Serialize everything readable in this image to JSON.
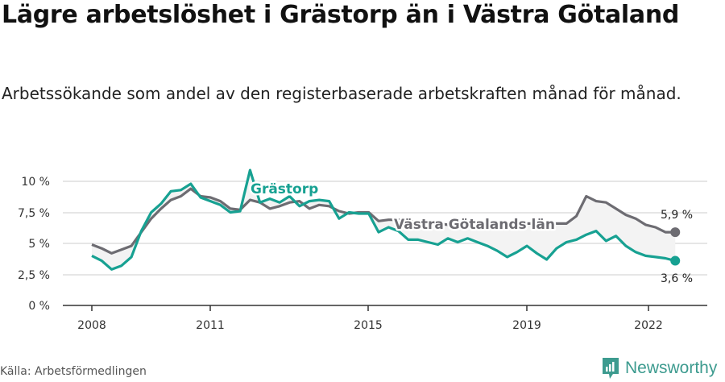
{
  "header": {
    "title": "Lägre arbetslöshet i Grästorp än i Västra Götaland",
    "subtitle": "Arbetssökande som andel av den registerbaserade arbetskraften månad för månad."
  },
  "footer": {
    "source": "Källa: Arbetsförmedlingen",
    "brand": "Newsworthy"
  },
  "colors": {
    "grastorp": "#17a192",
    "vastra_gotaland": "#6d6c72",
    "gap_fill": "#f2f2f2",
    "grid": "#dddddd",
    "axis": "#333333",
    "brand": "#3d9b8f"
  },
  "labels": {
    "grastorp": "Grästorp",
    "vastra_gotaland": "Västra Götalands län",
    "end_vastra": "5,9 %",
    "end_grastorp": "3,6 %"
  },
  "y_ticks": [
    "0 %",
    "2,5 %",
    "5 %",
    "7,5 %",
    "10 %"
  ],
  "x_ticks": [
    "2008",
    "2011",
    "2015",
    "2019",
    "2022"
  ],
  "chart_data": {
    "type": "line",
    "title": "Lägre arbetslöshet i Grästorp än i Västra Götaland",
    "subtitle": "Arbetssökande som andel av den registerbaserade arbetskraften månad för månad.",
    "xlabel": "",
    "ylabel": "",
    "ylim": [
      0,
      10
    ],
    "y_tick_values": [
      0,
      2.5,
      5,
      7.5,
      10
    ],
    "x_tick_values": [
      2008,
      2011,
      2015,
      2019,
      2022
    ],
    "grid": true,
    "legend_position": "inline labels",
    "source": "Källa: Arbetsförmedlingen",
    "x": [
      2008.0,
      2008.25,
      2008.5,
      2008.75,
      2009.0,
      2009.25,
      2009.5,
      2009.75,
      2010.0,
      2010.25,
      2010.5,
      2010.75,
      2011.0,
      2011.25,
      2011.5,
      2011.75,
      2012.0,
      2012.25,
      2012.5,
      2012.75,
      2013.0,
      2013.25,
      2013.5,
      2013.75,
      2014.0,
      2014.25,
      2014.5,
      2014.75,
      2015.0,
      2015.25,
      2015.5,
      2015.75,
      2016.0,
      2016.25,
      2016.5,
      2016.75,
      2017.0,
      2017.25,
      2017.5,
      2017.75,
      2018.0,
      2018.25,
      2018.5,
      2018.75,
      2019.0,
      2019.25,
      2019.5,
      2019.75,
      2020.0,
      2020.25,
      2020.5,
      2020.75,
      2021.0,
      2021.25,
      2021.5,
      2021.75,
      2022.0,
      2022.25,
      2022.5,
      2022.75
    ],
    "series": [
      {
        "name": "Västra Götalands län",
        "color": "#6d6c72",
        "values": [
          4.9,
          4.6,
          4.2,
          4.5,
          4.8,
          5.9,
          7.0,
          7.8,
          8.5,
          8.8,
          9.4,
          8.8,
          8.7,
          8.4,
          7.8,
          7.7,
          8.5,
          8.3,
          7.8,
          8.0,
          8.3,
          8.4,
          7.8,
          8.1,
          8.0,
          7.6,
          7.4,
          7.5,
          7.5,
          6.8,
          6.9,
          6.9,
          6.8,
          6.7,
          6.6,
          6.6,
          6.5,
          6.5,
          6.5,
          6.5,
          6.5,
          6.5,
          6.6,
          6.6,
          6.6,
          6.6,
          6.6,
          6.6,
          6.6,
          7.2,
          8.8,
          8.4,
          8.3,
          7.8,
          7.3,
          7.0,
          6.5,
          6.3,
          5.9,
          5.9
        ]
      },
      {
        "name": "Grästorp",
        "color": "#17a192",
        "values": [
          4.0,
          3.6,
          2.9,
          3.2,
          3.9,
          6.0,
          7.5,
          8.2,
          9.2,
          9.3,
          9.8,
          8.7,
          8.4,
          8.1,
          7.5,
          7.6,
          10.9,
          8.3,
          8.6,
          8.3,
          8.8,
          8.0,
          8.4,
          8.5,
          8.4,
          7.0,
          7.5,
          7.4,
          7.4,
          5.9,
          6.3,
          6.0,
          5.3,
          5.3,
          5.1,
          4.9,
          5.4,
          5.1,
          5.4,
          5.1,
          4.8,
          4.4,
          3.9,
          4.3,
          4.8,
          4.2,
          3.7,
          4.6,
          5.1,
          5.3,
          5.7,
          6.0,
          5.2,
          5.6,
          4.8,
          4.3,
          4.0,
          3.9,
          3.8,
          3.6
        ]
      }
    ],
    "annotations": [
      {
        "text": "Grästorp",
        "series": "Grästorp"
      },
      {
        "text": "Västra Götalands län",
        "series": "Västra Götalands län"
      },
      {
        "text": "5,9 %",
        "series": "Västra Götalands län",
        "position": "end"
      },
      {
        "text": "3,6 %",
        "series": "Grästorp",
        "position": "end"
      }
    ]
  }
}
